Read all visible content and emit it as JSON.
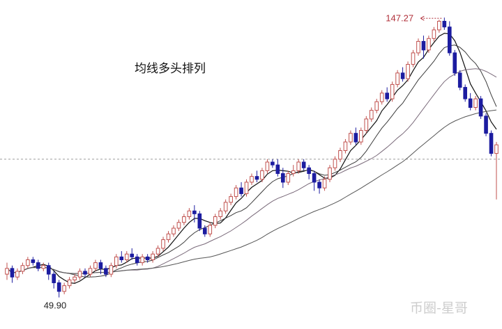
{
  "chart_data": {
    "type": "candlestick",
    "annotation": "均线多头排列",
    "high_label": "147.27",
    "low_label": "49.90",
    "watermark": "币圈-星哥",
    "ylim": [
      44,
      150
    ],
    "reference_price": 98,
    "colors": {
      "up": "#c0504d",
      "down": "#1c1ca0",
      "ma_fast": "#111111",
      "ma_mid": "#3a3a3a",
      "ma_slow": "#7a6a7a",
      "ma_long": "#555555",
      "reference_line": "#9a9a9a",
      "high_label": "#b0303a"
    },
    "candles": [
      [
        58,
        60,
        62,
        56
      ],
      [
        60,
        57,
        61,
        55
      ],
      [
        57,
        59,
        60,
        56
      ],
      [
        59,
        61,
        62,
        58
      ],
      [
        61,
        63,
        64,
        60
      ],
      [
        63,
        62,
        64,
        61
      ],
      [
        62,
        60,
        63,
        59
      ],
      [
        60,
        61,
        62,
        59
      ],
      [
        61,
        58,
        62,
        56
      ],
      [
        58,
        55,
        59,
        53
      ],
      [
        55,
        52,
        56,
        49.9
      ],
      [
        52,
        54,
        55,
        51
      ],
      [
        54,
        56,
        57,
        53
      ],
      [
        56,
        57,
        58,
        55
      ],
      [
        57,
        59,
        60,
        56
      ],
      [
        59,
        58,
        60,
        57
      ],
      [
        58,
        60,
        61,
        57
      ],
      [
        60,
        62,
        63,
        59
      ],
      [
        62,
        60,
        63,
        58
      ],
      [
        60,
        58,
        61,
        57
      ],
      [
        58,
        61,
        62,
        57
      ],
      [
        61,
        64,
        65,
        60
      ],
      [
        64,
        63,
        66,
        62
      ],
      [
        63,
        65,
        66,
        62
      ],
      [
        65,
        64,
        67,
        63
      ],
      [
        64,
        62,
        65,
        61
      ],
      [
        62,
        64,
        65,
        61
      ],
      [
        64,
        63,
        65,
        62
      ],
      [
        63,
        65,
        66,
        62
      ],
      [
        65,
        67,
        68,
        64
      ],
      [
        67,
        70,
        71,
        66
      ],
      [
        70,
        72,
        73,
        69
      ],
      [
        72,
        74,
        75,
        71
      ],
      [
        74,
        76,
        77,
        73
      ],
      [
        76,
        78,
        79,
        75
      ],
      [
        78,
        80,
        81,
        77
      ],
      [
        80,
        79,
        82,
        76
      ],
      [
        79,
        74,
        80,
        73
      ],
      [
        74,
        72,
        75,
        71
      ],
      [
        72,
        75,
        76,
        71
      ],
      [
        75,
        78,
        79,
        74
      ],
      [
        78,
        80,
        81,
        77
      ],
      [
        80,
        83,
        84,
        79
      ],
      [
        83,
        85,
        86,
        82
      ],
      [
        85,
        88,
        89,
        84
      ],
      [
        88,
        86,
        90,
        85
      ],
      [
        86,
        90,
        91,
        85
      ],
      [
        90,
        92,
        93,
        89
      ],
      [
        92,
        91,
        94,
        90
      ],
      [
        91,
        94,
        95,
        90
      ],
      [
        94,
        97,
        98,
        93
      ],
      [
        97,
        96,
        98,
        95
      ],
      [
        96,
        93,
        98,
        92
      ],
      [
        93,
        90,
        95,
        88
      ],
      [
        90,
        93,
        94,
        89
      ],
      [
        93,
        94,
        96,
        92
      ],
      [
        94,
        97,
        98,
        93
      ],
      [
        97,
        95,
        98,
        94
      ],
      [
        95,
        93,
        96,
        91
      ],
      [
        93,
        90,
        94,
        87
      ],
      [
        90,
        88,
        91,
        86
      ],
      [
        88,
        91,
        92,
        87
      ],
      [
        91,
        95,
        96,
        90
      ],
      [
        95,
        98,
        99,
        94
      ],
      [
        98,
        101,
        102,
        97
      ],
      [
        101,
        104,
        105,
        100
      ],
      [
        104,
        107,
        108,
        103
      ],
      [
        107,
        104,
        109,
        103
      ],
      [
        104,
        108,
        109,
        103
      ],
      [
        108,
        112,
        113,
        107
      ],
      [
        112,
        115,
        116,
        111
      ],
      [
        115,
        118,
        119,
        114
      ],
      [
        118,
        121,
        122,
        117
      ],
      [
        121,
        119,
        123,
        118
      ],
      [
        119,
        124,
        125,
        118
      ],
      [
        124,
        128,
        129,
        123
      ],
      [
        128,
        126,
        130,
        125
      ],
      [
        126,
        131,
        132,
        125
      ],
      [
        131,
        135,
        136,
        130
      ],
      [
        135,
        139,
        140,
        134
      ],
      [
        139,
        136,
        141,
        133
      ],
      [
        136,
        140,
        141,
        135
      ],
      [
        140,
        143,
        144,
        139
      ],
      [
        143,
        146,
        146.5,
        142
      ],
      [
        146,
        144,
        147.27,
        143
      ],
      [
        144,
        135,
        146,
        134
      ],
      [
        135,
        128,
        136,
        127
      ],
      [
        128,
        123,
        129,
        122
      ],
      [
        123,
        119,
        124,
        118
      ],
      [
        119,
        116,
        121,
        115
      ],
      [
        116,
        119,
        120,
        115
      ],
      [
        119,
        113,
        120,
        112
      ],
      [
        113,
        107,
        114,
        106
      ],
      [
        107,
        100,
        108,
        99
      ],
      [
        100,
        103,
        104,
        84
      ]
    ]
  }
}
